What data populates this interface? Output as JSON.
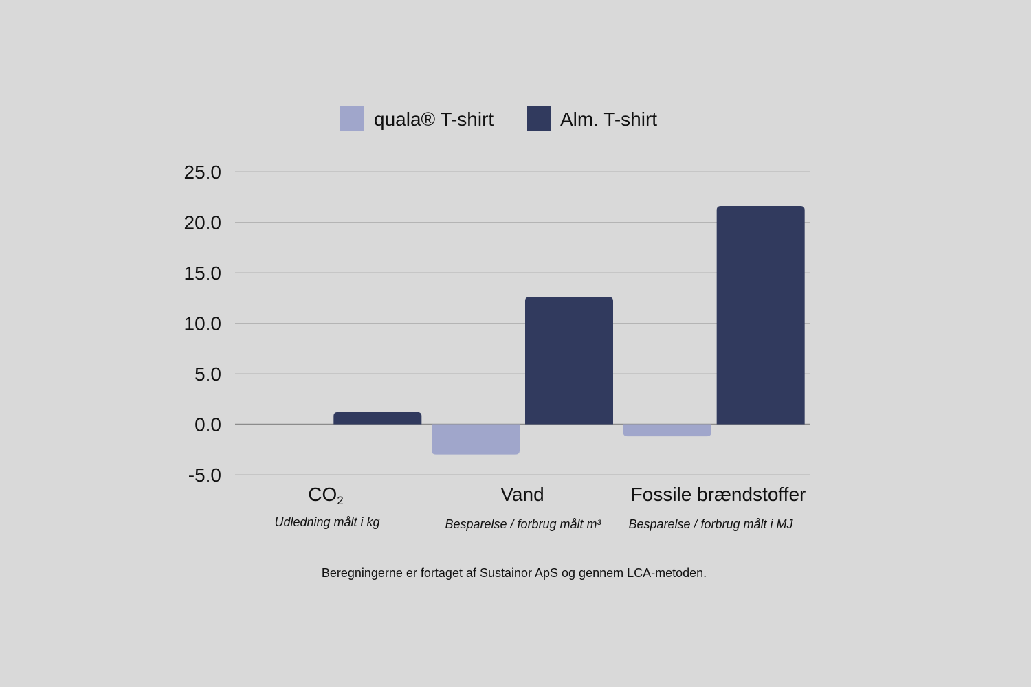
{
  "chart_data": {
    "type": "bar",
    "categories": [
      "CO",
      "Vand",
      "Fossile brændstoffer"
    ],
    "category_subscripts": [
      "2",
      "",
      ""
    ],
    "category_subtitles": [
      "Udledning målt i kg",
      "Besparelse / forbrug målt m³",
      "Besparelse / forbrug målt i MJ"
    ],
    "series": [
      {
        "name": "quala® T-shirt",
        "color": "#a0a6cb",
        "values": [
          0.0,
          -3.0,
          -1.2
        ]
      },
      {
        "name": "Alm. T-shirt",
        "color": "#313a5e",
        "values": [
          1.2,
          12.6,
          21.6
        ]
      }
    ],
    "ylim": [
      -5.0,
      25.0
    ],
    "yticks": [
      "25.0",
      "20.0",
      "15.0",
      "10.0",
      "5.0",
      "0.0",
      "-5.0"
    ],
    "ytick_values": [
      25,
      20,
      15,
      10,
      5,
      0,
      -5
    ],
    "grid": true,
    "legend_position": "top-center",
    "footnote": "Beregningerne er fortaget af Sustainor ApS og gennem LCA-metoden."
  }
}
